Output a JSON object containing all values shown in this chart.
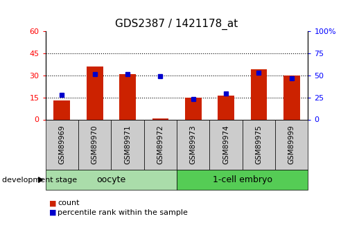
{
  "title": "GDS2387 / 1421178_at",
  "samples": [
    "GSM89969",
    "GSM89970",
    "GSM89971",
    "GSM89972",
    "GSM89973",
    "GSM89974",
    "GSM89975",
    "GSM89999"
  ],
  "counts": [
    13,
    36,
    31,
    0.5,
    15,
    16,
    34,
    30
  ],
  "percentiles": [
    28,
    51,
    51,
    49,
    23,
    29,
    53,
    47
  ],
  "left_ylim": [
    0,
    60
  ],
  "right_ylim": [
    0,
    100
  ],
  "left_yticks": [
    0,
    15,
    30,
    45,
    60
  ],
  "right_yticks": [
    0,
    25,
    50,
    75,
    100
  ],
  "right_yticklabels": [
    "0",
    "25",
    "50",
    "75",
    "100%"
  ],
  "bar_color": "#cc2200",
  "scatter_color": "#0000cc",
  "oocyte_color": "#aaddaa",
  "embryo_color": "#55cc55",
  "oocyte_label": "oocyte",
  "embryo_label": "1-cell embryo",
  "dev_stage_label": "development stage",
  "legend_count": "count",
  "legend_pct": "percentile rank within the sample",
  "bar_width": 0.5,
  "title_fontsize": 11,
  "tick_label_fontsize": 7.5,
  "stage_label_fontsize": 9,
  "legend_fontsize": 8,
  "devstage_fontsize": 8
}
